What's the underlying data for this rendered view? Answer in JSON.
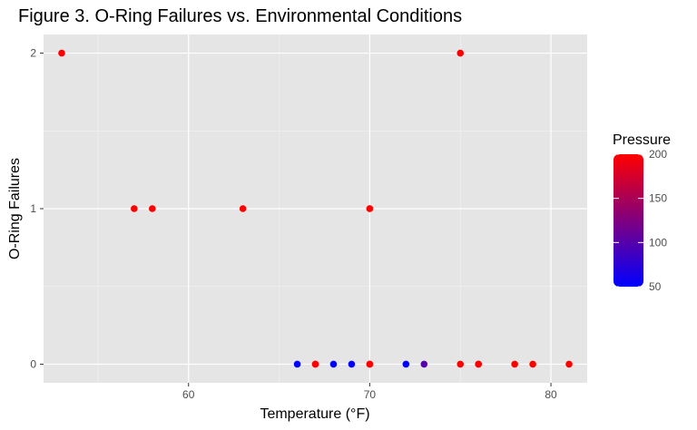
{
  "chart_data": {
    "type": "scatter",
    "title": "Figure 3. O-Ring Failures vs. Environmental Conditions",
    "xlabel": "Temperature (°F)",
    "ylabel": "O-Ring Failures",
    "xlim": [
      52,
      82
    ],
    "ylim": [
      -0.12,
      2.12
    ],
    "x_ticks": [
      60,
      70,
      80
    ],
    "y_ticks": [
      0,
      1,
      2
    ],
    "grid": true,
    "background_color": "#e5e5e5",
    "color_legend": {
      "title": "Pressure",
      "low": 50,
      "high": 200,
      "ticks": [
        50,
        100,
        150,
        200
      ],
      "low_color": "#0000ff",
      "high_color": "#ff0000",
      "placement": "right"
    },
    "points": [
      {
        "x": 53,
        "y": 2,
        "pressure": 200
      },
      {
        "x": 57,
        "y": 1,
        "pressure": 200
      },
      {
        "x": 58,
        "y": 1,
        "pressure": 200
      },
      {
        "x": 63,
        "y": 1,
        "pressure": 200
      },
      {
        "x": 66,
        "y": 0,
        "pressure": 50
      },
      {
        "x": 67,
        "y": 0,
        "pressure": 200
      },
      {
        "x": 67,
        "y": 0,
        "pressure": 200
      },
      {
        "x": 68,
        "y": 0,
        "pressure": 50
      },
      {
        "x": 69,
        "y": 0,
        "pressure": 50
      },
      {
        "x": 70,
        "y": 1,
        "pressure": 200
      },
      {
        "x": 70,
        "y": 0,
        "pressure": 200
      },
      {
        "x": 70,
        "y": 1,
        "pressure": 200
      },
      {
        "x": 70,
        "y": 0,
        "pressure": 200
      },
      {
        "x": 72,
        "y": 0,
        "pressure": 50
      },
      {
        "x": 73,
        "y": 0,
        "pressure": 100
      },
      {
        "x": 75,
        "y": 2,
        "pressure": 200
      },
      {
        "x": 75,
        "y": 0,
        "pressure": 200
      },
      {
        "x": 76,
        "y": 0,
        "pressure": 200
      },
      {
        "x": 76,
        "y": 0,
        "pressure": 200
      },
      {
        "x": 78,
        "y": 0,
        "pressure": 200
      },
      {
        "x": 79,
        "y": 0,
        "pressure": 200
      },
      {
        "x": 81,
        "y": 0,
        "pressure": 200
      }
    ]
  }
}
